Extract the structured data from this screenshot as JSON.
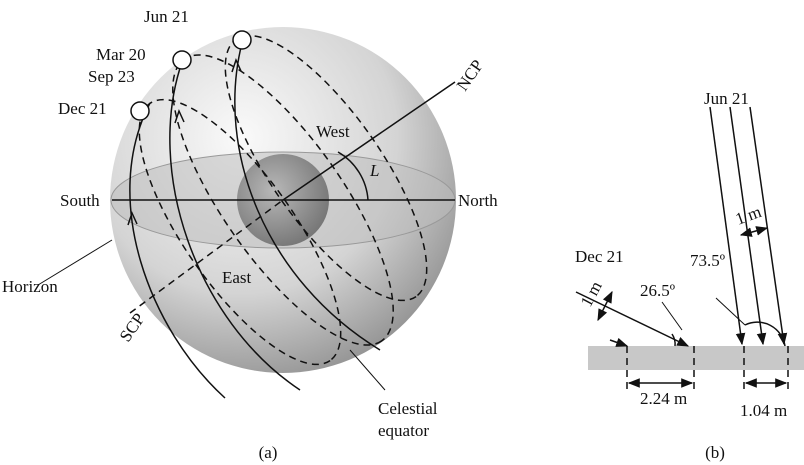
{
  "panel_a": {
    "dates": {
      "jun": "Jun 21",
      "mar": "Mar 20",
      "sep": "Sep 23",
      "dec": "Dec 21"
    },
    "west": "West",
    "ncp": "NCP",
    "latitude": "L",
    "south": "South",
    "north": "North",
    "horizon": "Horizon",
    "east": "East",
    "scp": "SCP",
    "celestial_equator": [
      "Celestial",
      "equator"
    ],
    "caption": "(a)"
  },
  "panel_b": {
    "jun": "Jun 21",
    "jun_width": "1 m",
    "jun_angle": "73.5º",
    "dec": "Dec 21",
    "dec_angle": "26.5º",
    "dec_width": "1 m",
    "dec_length": "2.24 m",
    "jun_length": "1.04 m",
    "caption": "(b)"
  }
}
